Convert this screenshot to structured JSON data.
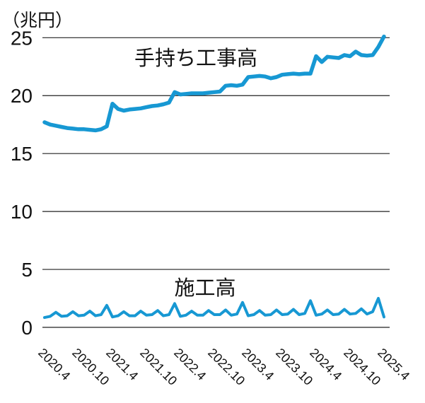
{
  "colors": {
    "line": "#1798d3",
    "grid": "#222222",
    "text": "#111111",
    "background": "#ffffff"
  },
  "chart_data": {
    "type": "line",
    "unit_label": "（兆円）",
    "x_frequency": "monthly",
    "x_range": [
      "2020.4",
      "2025.4"
    ],
    "n_points": 61,
    "x_tick_every": 6,
    "x_tick_labels": [
      "2020.4",
      "2020.10",
      "2021.4",
      "2021.10",
      "2022.4",
      "2022.10",
      "2023.4",
      "2023.10",
      "2024.4",
      "2024.10",
      "2025.4"
    ],
    "x_label_rotation": 45,
    "y_ticks": [
      0,
      5,
      10,
      15,
      20,
      25
    ],
    "ylim": [
      0,
      25
    ],
    "grid": "horizontal",
    "legend_position": "inline-annotations",
    "series": [
      {
        "name": "手持ち工事高",
        "values": [
          17.7,
          17.5,
          17.4,
          17.3,
          17.2,
          17.15,
          17.1,
          17.1,
          17.05,
          17.0,
          17.1,
          17.35,
          19.3,
          18.85,
          18.7,
          18.8,
          18.85,
          18.9,
          19.0,
          19.1,
          19.15,
          19.25,
          19.4,
          20.3,
          20.1,
          20.15,
          20.2,
          20.2,
          20.2,
          20.25,
          20.3,
          20.35,
          20.85,
          20.9,
          20.85,
          20.95,
          21.6,
          21.65,
          21.7,
          21.65,
          21.5,
          21.6,
          21.8,
          21.85,
          21.9,
          21.85,
          21.9,
          21.9,
          23.4,
          22.9,
          23.35,
          23.3,
          23.25,
          23.5,
          23.4,
          23.8,
          23.5,
          23.45,
          23.5,
          24.2,
          25.1
        ]
      },
      {
        "name": "施工高",
        "values": [
          0.85,
          0.95,
          1.3,
          0.95,
          1.0,
          1.35,
          1.0,
          1.05,
          1.4,
          1.0,
          1.1,
          1.9,
          0.9,
          1.0,
          1.35,
          1.0,
          1.0,
          1.4,
          1.05,
          1.1,
          1.45,
          1.0,
          1.1,
          2.05,
          0.95,
          1.05,
          1.4,
          1.05,
          1.05,
          1.45,
          1.1,
          1.1,
          1.5,
          1.05,
          1.15,
          2.15,
          1.0,
          1.1,
          1.45,
          1.05,
          1.1,
          1.5,
          1.1,
          1.15,
          1.55,
          1.1,
          1.2,
          2.3,
          1.05,
          1.15,
          1.5,
          1.1,
          1.15,
          1.55,
          1.15,
          1.2,
          1.6,
          1.15,
          1.35,
          2.5,
          0.9
        ]
      }
    ]
  }
}
